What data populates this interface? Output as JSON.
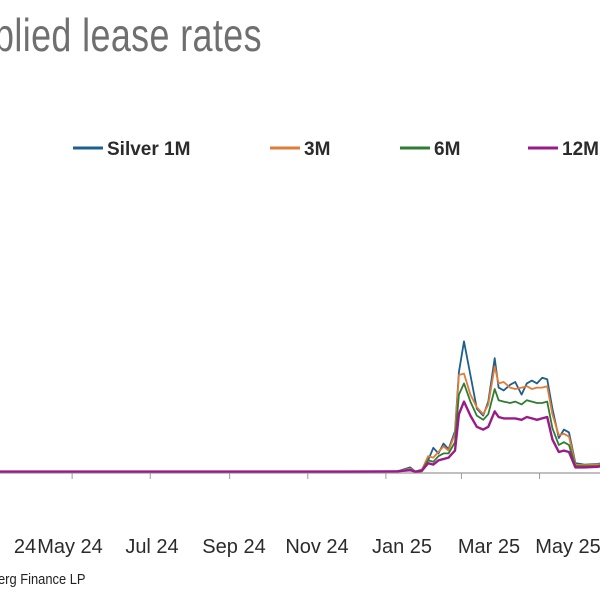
{
  "title": "plied lease rates",
  "source": "erg Finance LP",
  "chart_data": {
    "type": "line",
    "title": "plied lease rates",
    "x_tick_labels": [
      "24",
      "May 24",
      "Jul 24",
      "Sep 24",
      "Nov 24",
      "Jan 25",
      "Mar 25",
      "May 25"
    ],
    "x_start": "2024-03-01",
    "x_end": "2025-06-25",
    "x_tick_dates": [
      "2024-03-01",
      "2024-05-01",
      "2024-07-01",
      "2024-09-01",
      "2024-11-01",
      "2025-01-01",
      "2025-03-01",
      "2025-05-01",
      "2025-07-01"
    ],
    "ylim": [
      0,
      10
    ],
    "grid": false,
    "legend_position": "top",
    "series": [
      {
        "name": "Silver 1M",
        "color": "#1f5f8b",
        "x": [
          "2024-03-01",
          "2024-06-01",
          "2024-09-01",
          "2024-12-01",
          "2025-01-10",
          "2025-01-20",
          "2025-01-24",
          "2025-01-29",
          "2025-02-03",
          "2025-02-07",
          "2025-02-11",
          "2025-02-15",
          "2025-02-19",
          "2025-02-24",
          "2025-02-27",
          "2025-03-03",
          "2025-03-08",
          "2025-03-13",
          "2025-03-18",
          "2025-03-22",
          "2025-03-27",
          "2025-03-30",
          "2025-04-03",
          "2025-04-08",
          "2025-04-12",
          "2025-04-17",
          "2025-04-21",
          "2025-04-25",
          "2025-04-29",
          "2025-05-03",
          "2025-05-07",
          "2025-05-11",
          "2025-05-16",
          "2025-05-20",
          "2025-05-24",
          "2025-05-29",
          "2025-06-05",
          "2025-06-15",
          "2025-06-25"
        ],
        "values": [
          0.05,
          0.05,
          0.05,
          0.05,
          0.06,
          0.2,
          0.05,
          0.12,
          0.45,
          0.9,
          0.7,
          1.05,
          0.85,
          1.5,
          3.6,
          4.7,
          3.5,
          2.3,
          2.05,
          2.55,
          4.1,
          3.05,
          2.95,
          3.15,
          3.25,
          2.8,
          3.2,
          3.3,
          3.2,
          3.4,
          3.35,
          2.3,
          1.25,
          1.55,
          1.45,
          0.35,
          0.3,
          0.32,
          0.4
        ]
      },
      {
        "name": "3M",
        "color": "#e07b39",
        "x": [
          "2024-03-01",
          "2024-06-01",
          "2024-09-01",
          "2024-12-01",
          "2025-01-10",
          "2025-01-20",
          "2025-01-24",
          "2025-01-29",
          "2025-02-03",
          "2025-02-07",
          "2025-02-11",
          "2025-02-15",
          "2025-02-19",
          "2025-02-24",
          "2025-02-27",
          "2025-03-03",
          "2025-03-08",
          "2025-03-13",
          "2025-03-18",
          "2025-03-22",
          "2025-03-27",
          "2025-03-30",
          "2025-04-03",
          "2025-04-08",
          "2025-04-12",
          "2025-04-17",
          "2025-04-21",
          "2025-04-25",
          "2025-04-29",
          "2025-05-03",
          "2025-05-07",
          "2025-05-11",
          "2025-05-16",
          "2025-05-20",
          "2025-05-24",
          "2025-05-29",
          "2025-06-05",
          "2025-06-15",
          "2025-06-25"
        ],
        "values": [
          0.05,
          0.05,
          0.05,
          0.05,
          0.06,
          0.15,
          0.05,
          0.1,
          0.6,
          0.55,
          0.75,
          0.95,
          0.8,
          1.4,
          3.5,
          3.55,
          2.8,
          2.35,
          2.1,
          2.45,
          3.8,
          3.2,
          3.25,
          3.05,
          3.0,
          3.05,
          3.1,
          3.0,
          3.05,
          3.05,
          3.1,
          2.1,
          1.35,
          1.4,
          1.3,
          0.3,
          0.28,
          0.3,
          0.38
        ]
      },
      {
        "name": "6M",
        "color": "#2e7d32",
        "x": [
          "2024-03-01",
          "2024-06-01",
          "2024-09-01",
          "2024-12-01",
          "2025-01-10",
          "2025-01-20",
          "2025-01-24",
          "2025-01-29",
          "2025-02-03",
          "2025-02-07",
          "2025-02-11",
          "2025-02-15",
          "2025-02-19",
          "2025-02-24",
          "2025-02-27",
          "2025-03-03",
          "2025-03-08",
          "2025-03-13",
          "2025-03-18",
          "2025-03-22",
          "2025-03-27",
          "2025-03-30",
          "2025-04-03",
          "2025-04-08",
          "2025-04-12",
          "2025-04-17",
          "2025-04-21",
          "2025-04-25",
          "2025-04-29",
          "2025-05-03",
          "2025-05-07",
          "2025-05-11",
          "2025-05-16",
          "2025-05-20",
          "2025-05-24",
          "2025-05-29",
          "2025-06-05",
          "2025-06-15",
          "2025-06-25"
        ],
        "values": [
          0.05,
          0.05,
          0.05,
          0.05,
          0.06,
          0.12,
          0.05,
          0.08,
          0.45,
          0.4,
          0.6,
          0.7,
          0.7,
          1.1,
          2.8,
          3.2,
          2.55,
          2.05,
          1.9,
          2.1,
          3.0,
          2.6,
          2.55,
          2.5,
          2.55,
          2.45,
          2.6,
          2.55,
          2.5,
          2.5,
          2.55,
          1.6,
          1.0,
          1.1,
          1.0,
          0.25,
          0.24,
          0.25,
          0.32
        ]
      },
      {
        "name": "12M",
        "color": "#9b1a8a",
        "x": [
          "2024-03-01",
          "2024-06-01",
          "2024-09-01",
          "2024-12-01",
          "2025-01-10",
          "2025-01-20",
          "2025-01-24",
          "2025-01-29",
          "2025-02-03",
          "2025-02-07",
          "2025-02-11",
          "2025-02-15",
          "2025-02-19",
          "2025-02-24",
          "2025-02-27",
          "2025-03-03",
          "2025-03-08",
          "2025-03-13",
          "2025-03-18",
          "2025-03-22",
          "2025-03-27",
          "2025-03-30",
          "2025-04-03",
          "2025-04-08",
          "2025-04-12",
          "2025-04-17",
          "2025-04-21",
          "2025-04-25",
          "2025-04-29",
          "2025-05-03",
          "2025-05-07",
          "2025-05-11",
          "2025-05-16",
          "2025-05-20",
          "2025-05-24",
          "2025-05-29",
          "2025-06-05",
          "2025-06-15",
          "2025-06-25"
        ],
        "values": [
          0.05,
          0.05,
          0.05,
          0.05,
          0.06,
          0.1,
          0.05,
          0.07,
          0.35,
          0.3,
          0.45,
          0.5,
          0.55,
          0.8,
          2.1,
          2.55,
          2.05,
          1.65,
          1.55,
          1.65,
          2.2,
          2.0,
          1.95,
          1.95,
          1.95,
          1.9,
          2.0,
          1.95,
          1.9,
          1.95,
          2.0,
          1.2,
          0.75,
          0.8,
          0.75,
          0.2,
          0.2,
          0.22,
          0.28
        ]
      }
    ]
  }
}
